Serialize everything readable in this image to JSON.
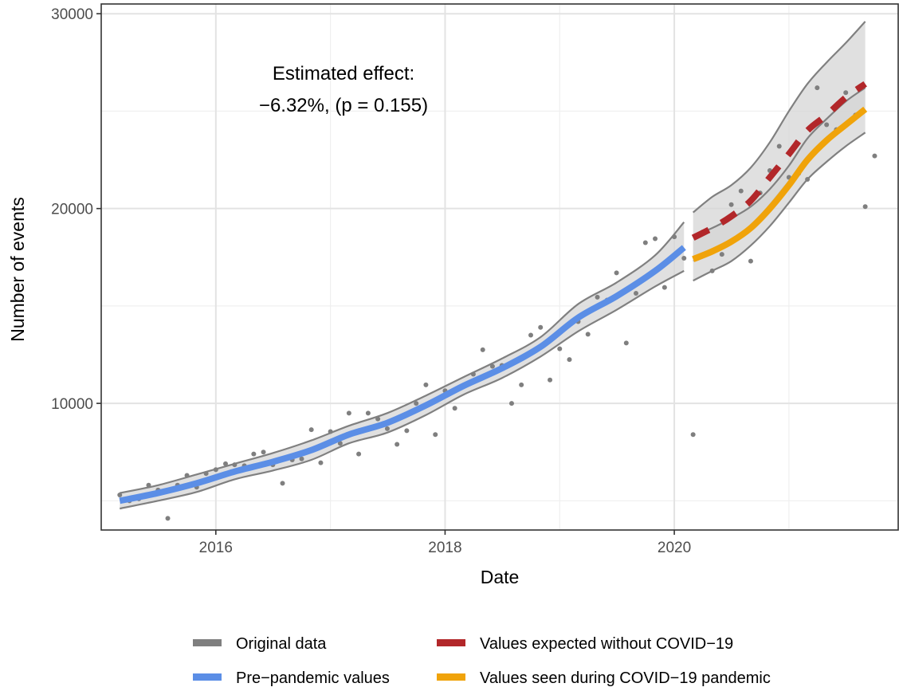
{
  "chart_data": {
    "type": "line",
    "xlabel": "Date",
    "ylabel": "Number of events",
    "xlim": [
      "2015-01-01",
      "2021-12-15"
    ],
    "ylim": [
      3500,
      30500
    ],
    "x_ticks": [
      {
        "date": "2016-01-01",
        "label": "2016"
      },
      {
        "date": "2018-01-01",
        "label": "2018"
      },
      {
        "date": "2020-01-01",
        "label": "2020"
      }
    ],
    "y_ticks": [
      {
        "value": 10000,
        "label": "10000"
      },
      {
        "value": 20000,
        "label": "20000"
      },
      {
        "value": 30000,
        "label": "30000"
      }
    ],
    "y_minor_gridlines": [
      5000,
      15000,
      25000
    ],
    "grid": true,
    "legend_position": "bottom",
    "annotation": {
      "lines": [
        "Estimated effect:",
        "−6.32%, (p = 0.155)"
      ]
    },
    "legend": [
      {
        "label": "Original data",
        "color": "#7f7f7f"
      },
      {
        "label": "Values expected without COVID−19",
        "color": "#b2272a"
      },
      {
        "label": "Pre−pandemic values",
        "color": "#5b8ee6"
      },
      {
        "label": "Values seen during COVID−19 pandemic",
        "color": "#f0a30a"
      }
    ],
    "colors": {
      "points": "#7f7f7f",
      "band_fill": "#d6d6d6",
      "band_edge": "#808080",
      "pre_pandemic": "#5b8ee6",
      "expected": "#b2272a",
      "observed": "#f0a30a"
    },
    "original_data": [
      {
        "x": "2015-03-01",
        "y": 5300
      },
      {
        "x": "2015-04-01",
        "y": 5000
      },
      {
        "x": "2015-05-01",
        "y": 5100
      },
      {
        "x": "2015-06-01",
        "y": 5800
      },
      {
        "x": "2015-07-01",
        "y": 5550
      },
      {
        "x": "2015-08-01",
        "y": 4100
      },
      {
        "x": "2015-09-01",
        "y": 5800
      },
      {
        "x": "2015-10-01",
        "y": 6300
      },
      {
        "x": "2015-11-01",
        "y": 5700
      },
      {
        "x": "2015-12-01",
        "y": 6400
      },
      {
        "x": "2016-01-01",
        "y": 6600
      },
      {
        "x": "2016-02-01",
        "y": 6900
      },
      {
        "x": "2016-03-01",
        "y": 6850
      },
      {
        "x": "2016-04-01",
        "y": 6800
      },
      {
        "x": "2016-05-01",
        "y": 7400
      },
      {
        "x": "2016-06-01",
        "y": 7500
      },
      {
        "x": "2016-07-01",
        "y": 6850
      },
      {
        "x": "2016-08-01",
        "y": 5900
      },
      {
        "x": "2016-09-01",
        "y": 7100
      },
      {
        "x": "2016-10-01",
        "y": 7150
      },
      {
        "x": "2016-11-01",
        "y": 8650
      },
      {
        "x": "2016-12-01",
        "y": 6950
      },
      {
        "x": "2017-01-01",
        "y": 8550
      },
      {
        "x": "2017-02-01",
        "y": 7950
      },
      {
        "x": "2017-03-01",
        "y": 9500
      },
      {
        "x": "2017-04-01",
        "y": 7400
      },
      {
        "x": "2017-05-01",
        "y": 9500
      },
      {
        "x": "2017-06-01",
        "y": 9200
      },
      {
        "x": "2017-07-01",
        "y": 8700
      },
      {
        "x": "2017-08-01",
        "y": 7900
      },
      {
        "x": "2017-09-01",
        "y": 8600
      },
      {
        "x": "2017-10-01",
        "y": 10000
      },
      {
        "x": "2017-11-01",
        "y": 10950
      },
      {
        "x": "2017-12-01",
        "y": 8400
      },
      {
        "x": "2018-01-01",
        "y": 10650
      },
      {
        "x": "2018-02-01",
        "y": 9750
      },
      {
        "x": "2018-03-01",
        "y": 10900
      },
      {
        "x": "2018-04-01",
        "y": 11500
      },
      {
        "x": "2018-05-01",
        "y": 12750
      },
      {
        "x": "2018-06-01",
        "y": 11900
      },
      {
        "x": "2018-07-01",
        "y": 11950
      },
      {
        "x": "2018-08-01",
        "y": 10000
      },
      {
        "x": "2018-09-01",
        "y": 10950
      },
      {
        "x": "2018-10-01",
        "y": 13500
      },
      {
        "x": "2018-11-01",
        "y": 13900
      },
      {
        "x": "2018-12-01",
        "y": 11200
      },
      {
        "x": "2019-01-01",
        "y": 12800
      },
      {
        "x": "2019-02-01",
        "y": 12250
      },
      {
        "x": "2019-03-01",
        "y": 14200
      },
      {
        "x": "2019-04-01",
        "y": 13550
      },
      {
        "x": "2019-05-01",
        "y": 15450
      },
      {
        "x": "2019-06-01",
        "y": 15300
      },
      {
        "x": "2019-07-01",
        "y": 16700
      },
      {
        "x": "2019-08-01",
        "y": 13100
      },
      {
        "x": "2019-09-01",
        "y": 15650
      },
      {
        "x": "2019-10-01",
        "y": 18250
      },
      {
        "x": "2019-11-01",
        "y": 18450
      },
      {
        "x": "2019-12-01",
        "y": 15950
      },
      {
        "x": "2020-01-01",
        "y": 18550
      },
      {
        "x": "2020-02-01",
        "y": 17450
      },
      {
        "x": "2020-03-01",
        "y": 8400
      },
      {
        "x": "2020-04-01",
        "y": 18800
      },
      {
        "x": "2020-05-01",
        "y": 16800
      },
      {
        "x": "2020-06-01",
        "y": 17650
      },
      {
        "x": "2020-07-01",
        "y": 20200
      },
      {
        "x": "2020-08-01",
        "y": 20900
      },
      {
        "x": "2020-09-01",
        "y": 17300
      },
      {
        "x": "2020-10-01",
        "y": 20800
      },
      {
        "x": "2020-11-01",
        "y": 21950
      },
      {
        "x": "2020-12-01",
        "y": 23200
      },
      {
        "x": "2021-01-01",
        "y": 21600
      },
      {
        "x": "2021-02-01",
        "y": 21800
      },
      {
        "x": "2021-03-01",
        "y": 21500
      },
      {
        "x": "2021-04-01",
        "y": 26200
      },
      {
        "x": "2021-05-01",
        "y": 24300
      },
      {
        "x": "2021-06-01",
        "y": 24050
      },
      {
        "x": "2021-07-01",
        "y": 25950
      },
      {
        "x": "2021-08-01",
        "y": 24800
      },
      {
        "x": "2021-09-01",
        "y": 20100
      },
      {
        "x": "2021-10-01",
        "y": 22700
      }
    ],
    "pre_pandemic_fit": {
      "x": [
        "2015-03-01",
        "2015-07-01",
        "2015-11-01",
        "2016-03-01",
        "2016-07-01",
        "2016-11-01",
        "2017-03-01",
        "2017-07-01",
        "2017-11-01",
        "2018-03-01",
        "2018-07-01",
        "2018-11-01",
        "2019-03-01",
        "2019-07-01",
        "2019-11-01",
        "2020-02-01"
      ],
      "y": [
        5000,
        5400,
        5900,
        6500,
        7000,
        7600,
        8400,
        9000,
        9900,
        10900,
        11800,
        12900,
        14400,
        15500,
        16800,
        18000
      ],
      "lower": [
        4600,
        5000,
        5450,
        6100,
        6550,
        7100,
        7950,
        8500,
        9400,
        10450,
        11300,
        12400,
        13700,
        14800,
        16000,
        16800
      ],
      "upper": [
        5400,
        5800,
        6350,
        6900,
        7450,
        8100,
        8850,
        9500,
        10400,
        11350,
        12300,
        13400,
        15100,
        16200,
        17600,
        19300
      ]
    },
    "expected_fit": {
      "x": [
        "2020-03-01",
        "2020-05-01",
        "2020-07-01",
        "2020-09-01",
        "2020-11-01",
        "2021-01-01",
        "2021-03-01",
        "2021-05-01",
        "2021-07-01",
        "2021-09-01"
      ],
      "y": [
        18500,
        19000,
        19600,
        20400,
        21600,
        22800,
        24000,
        24800,
        25700,
        26400
      ],
      "lower": [
        17300,
        17800,
        18400,
        19100,
        20200,
        21400,
        22500,
        23500,
        24300,
        25000
      ],
      "upper": [
        19800,
        20600,
        21200,
        22100,
        23400,
        25000,
        26400,
        27500,
        28500,
        29600
      ]
    },
    "observed_fit": {
      "x": [
        "2020-03-01",
        "2020-05-01",
        "2020-07-01",
        "2020-09-01",
        "2020-11-01",
        "2021-01-01",
        "2021-03-01",
        "2021-05-01",
        "2021-07-01",
        "2021-09-01"
      ],
      "y": [
        17400,
        17800,
        18300,
        19000,
        20000,
        21200,
        22500,
        23500,
        24300,
        25100
      ],
      "lower": [
        16300,
        16800,
        17300,
        18100,
        19100,
        20300,
        21500,
        22400,
        23200,
        23900
      ],
      "upper": [
        18600,
        19000,
        19500,
        20100,
        21000,
        22200,
        23600,
        24600,
        25500,
        26200
      ]
    }
  }
}
